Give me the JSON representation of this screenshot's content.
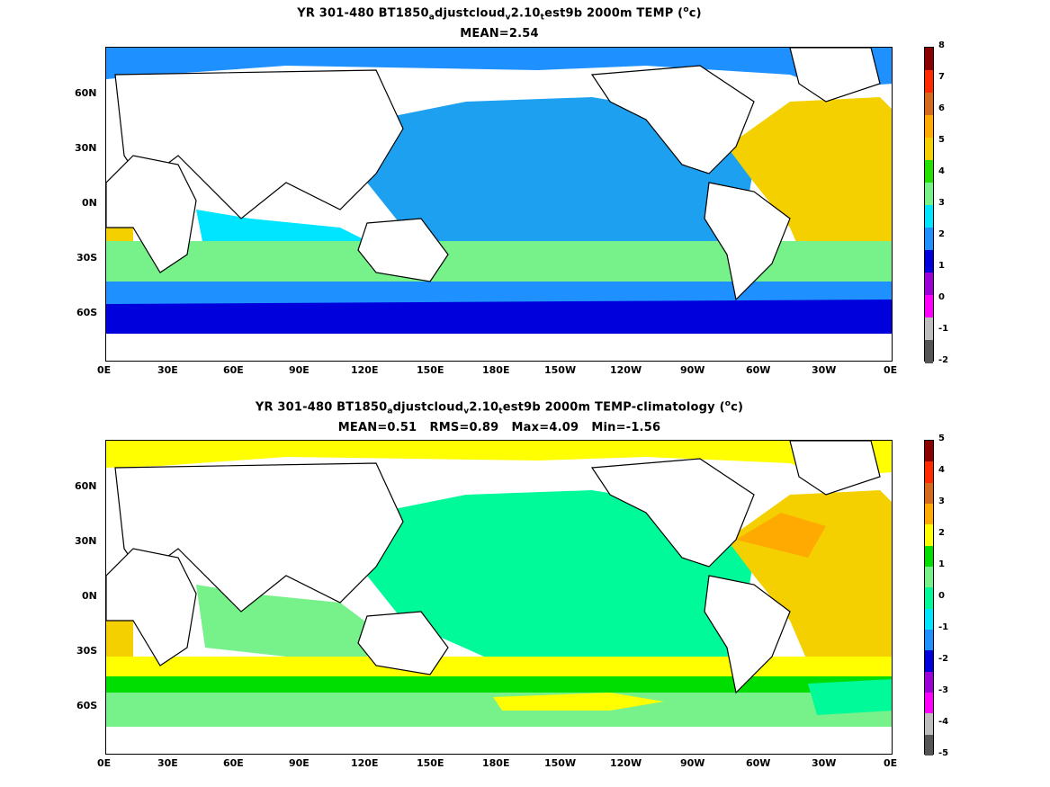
{
  "figure": {
    "top": {
      "title_prefix": "YR 301-480 BT1850",
      "title_sub1": "a",
      "title_mid1": "djustcloud",
      "title_sub2": "v",
      "title_mid2": "2.10",
      "title_sub3": "t",
      "title_mid3": "est9b 2000m TEMP (",
      "title_sup": "o",
      "title_end": "c)",
      "stats": "MEAN=2.54",
      "colorbar_labels": [
        "8",
        "7",
        "6",
        "5",
        "4",
        "3",
        "2",
        "1",
        "0",
        "-1",
        "-2"
      ],
      "colorbar_colors": [
        "#8b0000",
        "#ff2a00",
        "#d7691d",
        "#ffaa00",
        "#f5d000",
        "#22e000",
        "#77f28a",
        "#00e5ff",
        "#1e90ff",
        "#0000dd",
        "#9b00d6",
        "#ff00ff",
        "#bdbdbd",
        "#555555"
      ]
    },
    "bottom": {
      "title_prefix": "YR 301-480 BT1850",
      "title_sub1": "a",
      "title_mid1": "djustcloud",
      "title_sub2": "v",
      "title_mid2": "2.10",
      "title_sub3": "t",
      "title_mid3": "est9b 2000m TEMP-climatology (",
      "title_sup": "o",
      "title_end": "c)",
      "stats": "MEAN=0.51   RMS=0.89   Max=4.09   Min=-1.56",
      "colorbar_labels": [
        "5",
        "4",
        "3",
        "2",
        "1",
        "0",
        "-1",
        "-2",
        "-3",
        "-4",
        "-5"
      ],
      "colorbar_colors": [
        "#8b0000",
        "#ff2a00",
        "#d7691d",
        "#ffaa00",
        "#ffff00",
        "#00dd00",
        "#77f28a",
        "#00fa9a",
        "#00e5ff",
        "#1e90ff",
        "#0000dd",
        "#9b00d6",
        "#ff00ff",
        "#bdbdbd",
        "#555555"
      ]
    },
    "x_ticks": [
      "0E",
      "30E",
      "60E",
      "90E",
      "120E",
      "150E",
      "180E",
      "150W",
      "120W",
      "90W",
      "60W",
      "30W",
      "0E"
    ],
    "y_ticks": [
      "60N",
      "30N",
      "0N",
      "30S",
      "60S"
    ]
  }
}
